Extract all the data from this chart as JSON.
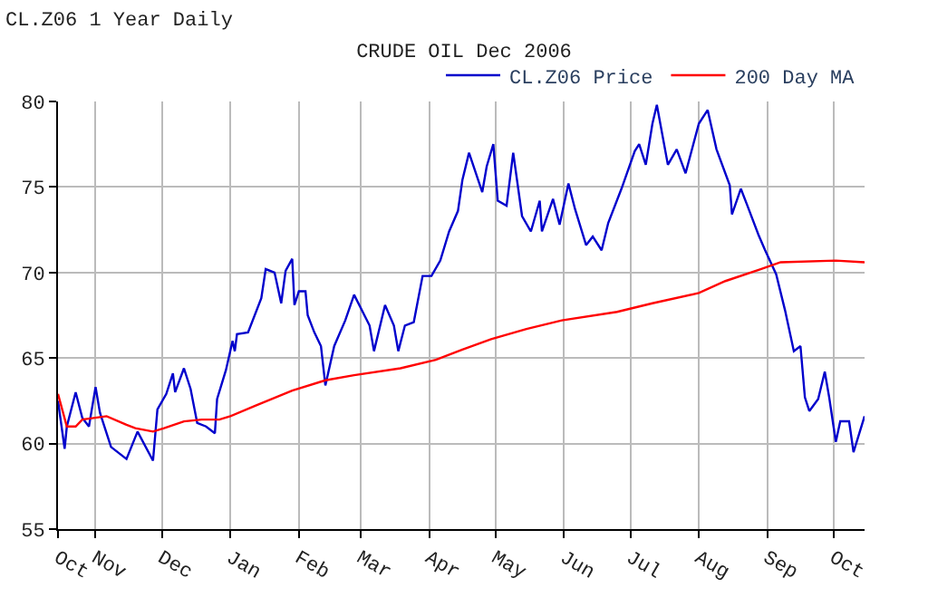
{
  "chart_data": {
    "type": "line",
    "title": "CRUDE OIL Dec 2006",
    "annotations": [
      "CL.Z06 1 Year Daily"
    ],
    "xlim": [
      "2005-10-15",
      "2006-10-15"
    ],
    "xticks": [
      {
        "value": "2005-10-15",
        "label": "Oct"
      },
      {
        "value": "2005-11-01",
        "label": "Nov"
      },
      {
        "value": "2005-12-01",
        "label": "Dec"
      },
      {
        "value": "2006-01-01",
        "label": "Jan"
      },
      {
        "value": "2006-02-01",
        "label": "Feb"
      },
      {
        "value": "2006-03-01",
        "label": "Mar"
      },
      {
        "value": "2006-04-01",
        "label": "Apr"
      },
      {
        "value": "2006-05-01",
        "label": "May"
      },
      {
        "value": "2006-06-01",
        "label": "Jun"
      },
      {
        "value": "2006-07-01",
        "label": "Jul"
      },
      {
        "value": "2006-08-01",
        "label": "Aug"
      },
      {
        "value": "2006-09-01",
        "label": "Sep"
      },
      {
        "value": "2006-10-01",
        "label": "Oct"
      }
    ],
    "ylim": [
      55,
      80
    ],
    "yticks": [
      55,
      60,
      65,
      70,
      75,
      80
    ],
    "grid": true,
    "legend": "top right",
    "marker": "none",
    "line_style": "solid",
    "series": [
      {
        "name": "CL.Z06 Price",
        "color": "#0000cc",
        "x": [
          "2005-10-15",
          "2005-10-18",
          "2005-10-19",
          "2005-10-23",
          "2005-10-26",
          "2005-10-29",
          "2005-11-01",
          "2005-11-03",
          "2005-11-08",
          "2005-11-15",
          "2005-11-20",
          "2005-11-27",
          "2005-11-29",
          "2005-12-03",
          "2005-12-06",
          "2005-12-07",
          "2005-12-11",
          "2005-12-14",
          "2005-12-17",
          "2005-12-21",
          "2005-12-25",
          "2005-12-26",
          "2005-12-30",
          "2006-01-02",
          "2006-01-03",
          "2006-01-04",
          "2006-01-09",
          "2006-01-15",
          "2006-01-17",
          "2006-01-21",
          "2006-01-24",
          "2006-01-26",
          "2006-01-29",
          "2006-01-30",
          "2006-02-01",
          "2006-02-04",
          "2006-02-05",
          "2006-02-08",
          "2006-02-11",
          "2006-02-13",
          "2006-02-17",
          "2006-02-22",
          "2006-02-26",
          "2006-03-05",
          "2006-03-07",
          "2006-03-12",
          "2006-03-16",
          "2006-03-18",
          "2006-03-21",
          "2006-03-25",
          "2006-03-29",
          "2006-04-02",
          "2006-04-06",
          "2006-04-10",
          "2006-04-14",
          "2006-04-16",
          "2006-04-19",
          "2006-04-25",
          "2006-04-27",
          "2006-04-30",
          "2006-05-02",
          "2006-05-06",
          "2006-05-09",
          "2006-05-13",
          "2006-05-17",
          "2006-05-21",
          "2006-05-22",
          "2006-05-27",
          "2006-05-30",
          "2006-06-03",
          "2006-06-06",
          "2006-06-11",
          "2006-06-14",
          "2006-06-18",
          "2006-06-21",
          "2006-06-27",
          "2006-07-03",
          "2006-07-05",
          "2006-07-08",
          "2006-07-11",
          "2006-07-13",
          "2006-07-18",
          "2006-07-22",
          "2006-07-26",
          "2006-08-01",
          "2006-08-05",
          "2006-08-09",
          "2006-08-15",
          "2006-08-16",
          "2006-08-20",
          "2006-08-23",
          "2006-08-28",
          "2006-08-31",
          "2006-09-05",
          "2006-09-09",
          "2006-09-13",
          "2006-09-16",
          "2006-09-18",
          "2006-09-20",
          "2006-09-24",
          "2006-09-27",
          "2006-09-29",
          "2006-10-02",
          "2006-10-04",
          "2006-10-08",
          "2006-10-10",
          "2006-10-15"
        ],
        "values": [
          62.5,
          59.7,
          61.0,
          63.0,
          61.5,
          61.0,
          63.3,
          61.8,
          59.8,
          59.1,
          60.7,
          59.0,
          62.0,
          62.9,
          64.1,
          63.0,
          64.4,
          63.2,
          61.2,
          61.0,
          60.6,
          62.6,
          64.3,
          66.0,
          65.4,
          66.4,
          66.5,
          68.5,
          70.2,
          70.0,
          68.2,
          70.1,
          70.8,
          68.1,
          68.9,
          68.9,
          67.5,
          66.5,
          65.7,
          63.4,
          65.7,
          67.2,
          68.7,
          66.9,
          65.4,
          68.1,
          66.9,
          65.4,
          66.9,
          67.1,
          69.8,
          69.8,
          70.7,
          72.4,
          73.6,
          75.4,
          77.0,
          74.7,
          76.2,
          77.5,
          74.2,
          73.9,
          77.0,
          73.3,
          72.4,
          74.2,
          72.4,
          74.3,
          72.8,
          75.2,
          73.7,
          71.6,
          72.1,
          71.3,
          72.9,
          74.9,
          77.1,
          77.5,
          76.3,
          78.7,
          79.8,
          76.3,
          77.2,
          75.8,
          78.7,
          79.5,
          77.2,
          75.1,
          73.4,
          74.9,
          73.9,
          72.2,
          71.3,
          69.9,
          67.8,
          65.4,
          65.7,
          62.7,
          61.9,
          62.6,
          64.2,
          62.7,
          60.1,
          61.3,
          61.3,
          59.5,
          61.6
        ]
      },
      {
        "name": "200 Day MA",
        "color": "#ff0000",
        "x": [
          "2005-10-15",
          "2005-10-19",
          "2005-10-23",
          "2005-10-26",
          "2005-11-06",
          "2005-11-15",
          "2005-11-19",
          "2005-11-27",
          "2005-12-02",
          "2005-12-11",
          "2005-12-19",
          "2005-12-27",
          "2006-01-01",
          "2006-01-12",
          "2006-01-29",
          "2006-02-13",
          "2006-02-26",
          "2006-03-19",
          "2006-04-04",
          "2006-04-16",
          "2006-04-29",
          "2006-05-15",
          "2006-05-31",
          "2006-06-25",
          "2006-07-11",
          "2006-08-01",
          "2006-08-13",
          "2006-08-29",
          "2006-09-07",
          "2006-10-02",
          "2006-10-15"
        ],
        "values": [
          62.9,
          61.0,
          61.0,
          61.4,
          61.6,
          61.1,
          60.9,
          60.7,
          60.9,
          61.3,
          61.4,
          61.4,
          61.6,
          62.2,
          63.1,
          63.7,
          64.0,
          64.4,
          64.9,
          65.5,
          66.1,
          66.7,
          67.2,
          67.7,
          68.2,
          68.8,
          69.5,
          70.2,
          70.6,
          70.7,
          70.6
        ]
      }
    ]
  }
}
